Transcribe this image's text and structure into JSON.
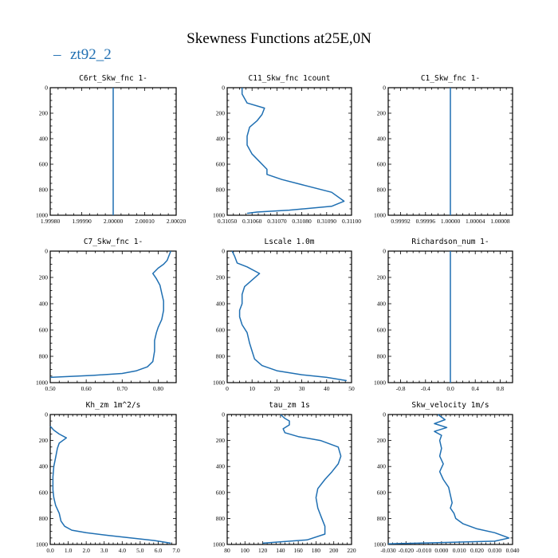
{
  "figure": {
    "title": "Skewness Functions at25E,0N",
    "legend": {
      "dash": "–",
      "label": "zt92_2",
      "color": "#1f6fb2"
    },
    "line_color": "#1f6fb2"
  },
  "chart_data": [
    {
      "type": "line",
      "title": "C6rt_Skw_fnc",
      "unit": "1-",
      "xlim": [
        1.9998,
        2.0002
      ],
      "ylim": [
        0,
        1000
      ],
      "y_inverted": true,
      "xticks": [
        "1.99980",
        "1.99990",
        "2.00000",
        "2.00010",
        "2.00020"
      ],
      "xtick_values": [
        1.9998,
        1.9999,
        2.0,
        2.0001,
        2.0002
      ],
      "yticks": [
        "0",
        "200",
        "400",
        "600",
        "800",
        "1000"
      ],
      "x": [
        2.0,
        2.0
      ],
      "y": [
        0,
        1000
      ]
    },
    {
      "type": "line",
      "title": "C11_Skw_fnc",
      "unit": "1count",
      "xlim": [
        0.3105,
        0.311
      ],
      "ylim": [
        0,
        1000
      ],
      "y_inverted": true,
      "xticks": [
        "0.31050",
        "0.31060",
        "0.31070",
        "0.31080",
        "0.31090",
        "0.31100"
      ],
      "xtick_values": [
        0.3105,
        0.3106,
        0.3107,
        0.3108,
        0.3109,
        0.311
      ],
      "yticks": [
        "0",
        "200",
        "400",
        "600",
        "800",
        "1000"
      ],
      "x": [
        0.31056,
        0.31056,
        0.31058,
        0.31065,
        0.31064,
        0.31062,
        0.31059,
        0.31058,
        0.31058,
        0.3106,
        0.31063,
        0.31066,
        0.31066,
        0.31072,
        0.3108,
        0.31092,
        0.31097,
        0.31092,
        0.31075,
        0.31062,
        0.31058
      ],
      "y": [
        0,
        50,
        120,
        160,
        210,
        260,
        310,
        380,
        450,
        520,
        580,
        640,
        680,
        720,
        760,
        820,
        890,
        930,
        960,
        975,
        985
      ]
    },
    {
      "type": "line",
      "title": "C1_Skw_fnc",
      "unit": "1-",
      "xlim": [
        0.9999,
        1.0001
      ],
      "ylim": [
        0,
        1000
      ],
      "y_inverted": true,
      "xticks": [
        "0.99992",
        "0.99996",
        "1.00000",
        "1.00004",
        "1.00008"
      ],
      "xtick_values": [
        0.99992,
        0.99996,
        1.0,
        1.00004,
        1.00008
      ],
      "yticks": [
        "0",
        "200",
        "400",
        "600",
        "800",
        "1000"
      ],
      "x": [
        1.0,
        1.0
      ],
      "y": [
        0,
        1000
      ]
    },
    {
      "type": "line",
      "title": "C7_Skw_fnc",
      "unit": "1-",
      "xlim": [
        0.5,
        0.85
      ],
      "ylim": [
        0,
        1000
      ],
      "y_inverted": true,
      "xticks": [
        "0.50",
        "0.60",
        "0.70",
        "0.80"
      ],
      "xtick_values": [
        0.5,
        0.6,
        0.7,
        0.8
      ],
      "yticks": [
        "0",
        "200",
        "400",
        "600",
        "800",
        "1000"
      ],
      "x": [
        0.835,
        0.825,
        0.815,
        0.8,
        0.785,
        0.795,
        0.805,
        0.81,
        0.815,
        0.815,
        0.81,
        0.8,
        0.795,
        0.79,
        0.79,
        0.785,
        0.77,
        0.74,
        0.7,
        0.62,
        0.5
      ],
      "y": [
        0,
        70,
        100,
        130,
        170,
        210,
        260,
        320,
        380,
        450,
        520,
        580,
        620,
        680,
        760,
        840,
        880,
        910,
        930,
        945,
        960
      ]
    },
    {
      "type": "line",
      "title": "Lscale",
      "unit": "1.0m",
      "xlim": [
        0,
        50
      ],
      "ylim": [
        0,
        1000
      ],
      "y_inverted": true,
      "xticks": [
        "0",
        "10",
        "20",
        "30",
        "40",
        "50"
      ],
      "xtick_values": [
        0,
        10,
        20,
        30,
        40,
        50
      ],
      "yticks": [
        "0",
        "200",
        "400",
        "600",
        "800",
        "1000"
      ],
      "x": [
        2,
        3,
        4,
        8,
        13,
        10,
        7,
        6,
        6,
        5,
        5,
        6,
        8,
        9,
        10,
        11,
        14,
        20,
        30,
        40,
        48
      ],
      "y": [
        0,
        40,
        90,
        120,
        170,
        220,
        270,
        330,
        400,
        450,
        500,
        560,
        620,
        700,
        760,
        820,
        870,
        910,
        940,
        960,
        985
      ]
    },
    {
      "type": "line",
      "title": "Richardson_num",
      "unit": "1-",
      "xlim": [
        -1,
        1
      ],
      "ylim": [
        0,
        1000
      ],
      "y_inverted": true,
      "xticks": [
        "-0.8",
        "-0.4",
        "0.0",
        "0.4",
        "0.8"
      ],
      "xtick_values": [
        -0.8,
        -0.4,
        0.0,
        0.4,
        0.8
      ],
      "yticks": [
        "0",
        "200",
        "400",
        "600",
        "800",
        "1000"
      ],
      "x": [
        0,
        0
      ],
      "y": [
        0,
        1000
      ]
    },
    {
      "type": "line",
      "title": "Kh_zm",
      "unit": "1m^2/s",
      "xlim": [
        0,
        7
      ],
      "ylim": [
        0,
        1000
      ],
      "y_inverted": true,
      "xticks": [
        "0.0",
        "1.0",
        "2.0",
        "3.0",
        "4.0",
        "5.0",
        "6.0",
        "7.0"
      ],
      "xtick_values": [
        0,
        1,
        2,
        3,
        4,
        5,
        6,
        7
      ],
      "yticks": [
        "0",
        "200",
        "400",
        "600",
        "800",
        "1000"
      ],
      "x": [
        0,
        0.2,
        0.5,
        0.9,
        0.5,
        0.4,
        0.3,
        0.2,
        0.15,
        0.15,
        0.2,
        0.3,
        0.5,
        0.6,
        0.8,
        1.2,
        2.0,
        3.2,
        4.5,
        5.8,
        6.7
      ],
      "y": [
        90,
        120,
        150,
        180,
        220,
        260,
        330,
        400,
        480,
        580,
        640,
        700,
        760,
        820,
        860,
        890,
        910,
        930,
        950,
        970,
        990
      ]
    },
    {
      "type": "line",
      "title": "tau_zm",
      "unit": "1s",
      "xlim": [
        80,
        220
      ],
      "ylim": [
        0,
        1000
      ],
      "y_inverted": true,
      "xticks": [
        "80",
        "100",
        "120",
        "140",
        "160",
        "180",
        "200",
        "220"
      ],
      "xtick_values": [
        80,
        100,
        120,
        140,
        160,
        180,
        200,
        220
      ],
      "yticks": [
        "0",
        "200",
        "400",
        "600",
        "800",
        "1000"
      ],
      "x": [
        140,
        145,
        150,
        150,
        143,
        145,
        160,
        185,
        205,
        208,
        205,
        198,
        190,
        182,
        180,
        182,
        186,
        190,
        190,
        170,
        120
      ],
      "y": [
        0,
        30,
        50,
        80,
        110,
        140,
        170,
        200,
        250,
        320,
        380,
        440,
        500,
        570,
        640,
        720,
        790,
        860,
        920,
        965,
        990
      ]
    },
    {
      "type": "line",
      "title": "Skw_velocity",
      "unit": "1m/s",
      "xlim": [
        -0.03,
        0.04
      ],
      "ylim": [
        0,
        1000
      ],
      "y_inverted": true,
      "xticks": [
        "-0.030",
        "-0.020",
        "-0.010",
        "0.000",
        "0.010",
        "0.020",
        "0.030",
        "0.040"
      ],
      "xtick_values": [
        -0.03,
        -0.02,
        -0.01,
        0.0,
        0.01,
        0.02,
        0.03,
        0.04
      ],
      "yticks": [
        "0",
        "200",
        "400",
        "600",
        "800",
        "1000"
      ],
      "x": [
        -0.002,
        0.002,
        -0.004,
        0.003,
        -0.004,
        0.0,
        -0.001,
        0.0,
        -0.001,
        0.001,
        -0.001,
        0.001,
        0.004,
        0.005,
        0.006,
        0.005,
        0.007,
        0.008,
        0.012,
        0.02,
        0.03,
        0.038,
        0.03,
        0.0,
        -0.03
      ],
      "y": [
        0,
        40,
        70,
        100,
        130,
        160,
        200,
        260,
        320,
        380,
        440,
        500,
        560,
        620,
        680,
        720,
        760,
        800,
        840,
        880,
        910,
        950,
        975,
        985,
        995
      ]
    }
  ]
}
